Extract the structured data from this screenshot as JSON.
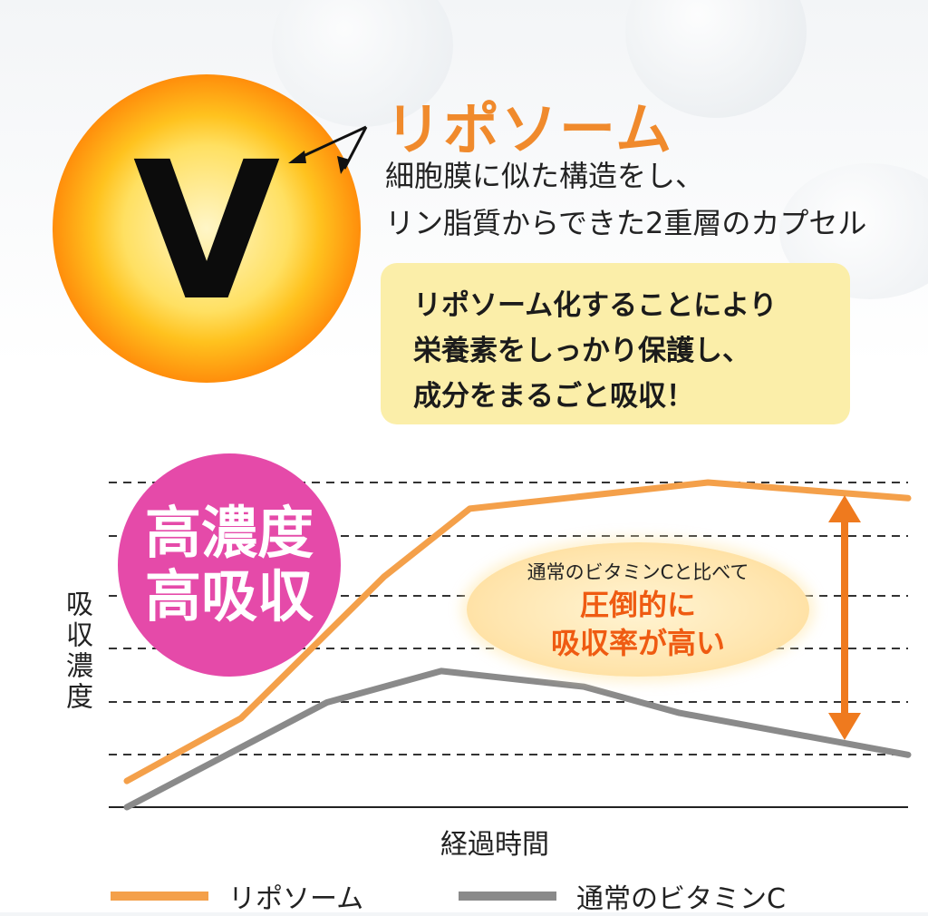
{
  "header": {
    "v_letter": "V",
    "title": "リポソーム",
    "desc_lines": [
      "細胞膜に似た構造をし、",
      "リン脂質からできた2重層のカプセル"
    ]
  },
  "callout": {
    "lines": [
      "リポソーム化することにより",
      "栄養素をしっかり保護し、",
      "成分をまるごと吸収！"
    ]
  },
  "badge": {
    "lines": [
      "高濃度",
      "高吸収"
    ]
  },
  "comparison": {
    "small": "通常のビタミンCと比べて",
    "big_lines": [
      "圧倒的に",
      "吸収率が高い"
    ]
  },
  "colors": {
    "liposome": "#f4a04a",
    "normal": "#8a8a8a",
    "accent": "#ef7a1e",
    "badge": "#e54aa9",
    "callout_bg": "#fbeea9"
  },
  "chart_data": {
    "type": "line",
    "xlabel": "経過時間",
    "ylabel": "吸収濃度",
    "grid": "horizontal-dashed",
    "legend_placement": "bottom",
    "series": [
      {
        "name": "リポソーム",
        "x": [
          0,
          1.2,
          2.7,
          3.6,
          6.1,
          8.2
        ],
        "y": [
          0.5,
          1.7,
          4.4,
          5.7,
          6.2,
          5.9
        ]
      },
      {
        "name": "通常のビタミンC",
        "x": [
          0,
          2.1,
          3.3,
          4.8,
          5.8,
          8.2
        ],
        "y": [
          0.0,
          2.0,
          2.6,
          2.3,
          1.8,
          1.0
        ]
      }
    ],
    "xlim": [
      0,
      8.2
    ],
    "ylim": [
      0,
      6.2
    ]
  }
}
